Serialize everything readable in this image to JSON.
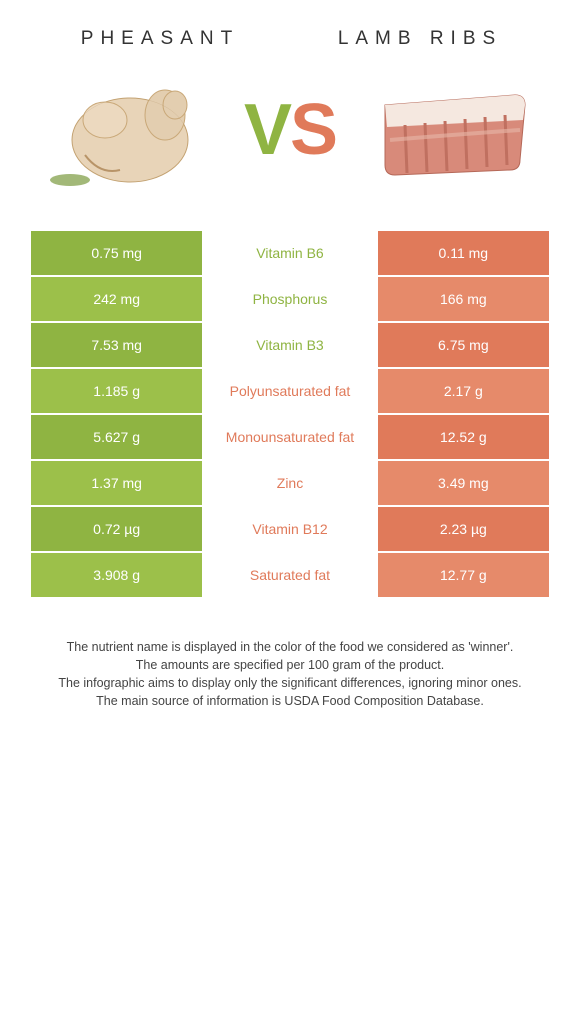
{
  "header": {
    "left_title": "PHEASANT",
    "right_title": "LAMB RIBS",
    "vs_v": "V",
    "vs_s": "S"
  },
  "colors": {
    "left_col": "#8fb442",
    "left_col_alt": "#9cc04a",
    "right_col": "#e07a5a",
    "right_col_alt": "#e68a6a",
    "mid_left_text": "#8fb442",
    "mid_right_text": "#e07a5a",
    "white": "#ffffff"
  },
  "rows": [
    {
      "left": "0.75 mg",
      "label": "Vitamin B6",
      "right": "0.11 mg",
      "winner": "left"
    },
    {
      "left": "242 mg",
      "label": "Phosphorus",
      "right": "166 mg",
      "winner": "left"
    },
    {
      "left": "7.53 mg",
      "label": "Vitamin B3",
      "right": "6.75 mg",
      "winner": "left"
    },
    {
      "left": "1.185 g",
      "label": "Polyunsaturated fat",
      "right": "2.17 g",
      "winner": "right"
    },
    {
      "left": "5.627 g",
      "label": "Monounsaturated fat",
      "right": "12.52 g",
      "winner": "right"
    },
    {
      "left": "1.37 mg",
      "label": "Zinc",
      "right": "3.49 mg",
      "winner": "right"
    },
    {
      "left": "0.72 µg",
      "label": "Vitamin B12",
      "right": "2.23 µg",
      "winner": "right"
    },
    {
      "left": "3.908 g",
      "label": "Saturated fat",
      "right": "12.77 g",
      "winner": "right"
    }
  ],
  "footer": {
    "line1": "The nutrient name is displayed in the color of the food we considered as 'winner'.",
    "line2": "The amounts are specified per 100 gram of the product.",
    "line3": "The infographic aims to display only the significant differences, ignoring minor ones.",
    "line4": "The main source of information is USDA Food Composition Database."
  },
  "style": {
    "title_fontsize": 19,
    "title_letterspacing": 7,
    "vs_fontsize": 72,
    "cell_fontsize": 14,
    "footer_fontsize": 12.5,
    "row_padding_v": 14
  }
}
